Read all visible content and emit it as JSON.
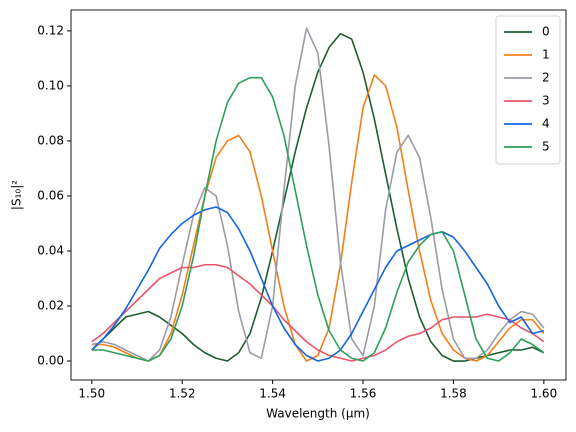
{
  "chart_data": {
    "type": "line",
    "xlabel": "Wavelength (μm)",
    "ylabel": "|S₁₀|²",
    "x": [
      1.5,
      1.5025,
      1.505,
      1.5075,
      1.51,
      1.5125,
      1.515,
      1.5175,
      1.52,
      1.5225,
      1.525,
      1.5275,
      1.53,
      1.5325,
      1.535,
      1.5375,
      1.54,
      1.5425,
      1.545,
      1.5475,
      1.55,
      1.5525,
      1.555,
      1.5575,
      1.56,
      1.5625,
      1.565,
      1.5675,
      1.57,
      1.5725,
      1.575,
      1.5775,
      1.58,
      1.5825,
      1.585,
      1.5875,
      1.59,
      1.5925,
      1.595,
      1.5975,
      1.6
    ],
    "series": [
      {
        "name": "0",
        "color": "#1b5e32",
        "values": [
          0.004,
          0.008,
          0.012,
          0.016,
          0.017,
          0.018,
          0.016,
          0.013,
          0.01,
          0.006,
          0.003,
          0.001,
          0.0,
          0.003,
          0.01,
          0.023,
          0.04,
          0.058,
          0.076,
          0.092,
          0.105,
          0.114,
          0.119,
          0.117,
          0.105,
          0.088,
          0.068,
          0.048,
          0.03,
          0.016,
          0.007,
          0.002,
          0.0,
          0.0,
          0.001,
          0.002,
          0.003,
          0.004,
          0.004,
          0.005,
          0.003
        ]
      },
      {
        "name": "1",
        "color": "#f47f1a",
        "values": [
          0.006,
          0.006,
          0.005,
          0.003,
          0.001,
          0.0,
          0.002,
          0.01,
          0.024,
          0.042,
          0.06,
          0.074,
          0.08,
          0.082,
          0.076,
          0.06,
          0.04,
          0.02,
          0.006,
          0.0,
          0.002,
          0.012,
          0.035,
          0.065,
          0.092,
          0.104,
          0.1,
          0.085,
          0.062,
          0.04,
          0.022,
          0.01,
          0.004,
          0.001,
          0.0,
          0.002,
          0.007,
          0.012,
          0.015,
          0.015,
          0.01
        ]
      },
      {
        "name": "2",
        "color": "#9c9ca4",
        "values": [
          0.006,
          0.007,
          0.006,
          0.004,
          0.002,
          0.0,
          0.004,
          0.016,
          0.035,
          0.053,
          0.063,
          0.06,
          0.042,
          0.018,
          0.003,
          0.001,
          0.02,
          0.062,
          0.1,
          0.121,
          0.112,
          0.078,
          0.036,
          0.008,
          0.002,
          0.02,
          0.055,
          0.076,
          0.082,
          0.074,
          0.052,
          0.026,
          0.008,
          0.001,
          0.001,
          0.004,
          0.01,
          0.015,
          0.018,
          0.017,
          0.012
        ]
      },
      {
        "name": "3",
        "color": "#e8556b",
        "values": [
          0.007,
          0.01,
          0.014,
          0.018,
          0.022,
          0.026,
          0.03,
          0.032,
          0.034,
          0.034,
          0.035,
          0.035,
          0.034,
          0.031,
          0.028,
          0.024,
          0.02,
          0.015,
          0.011,
          0.007,
          0.004,
          0.002,
          0.001,
          0.0,
          0.001,
          0.002,
          0.004,
          0.007,
          0.009,
          0.01,
          0.012,
          0.015,
          0.016,
          0.016,
          0.016,
          0.017,
          0.016,
          0.015,
          0.012,
          0.01,
          0.007
        ]
      },
      {
        "name": "4",
        "color": "#1565e0",
        "values": [
          0.004,
          0.008,
          0.013,
          0.019,
          0.026,
          0.033,
          0.041,
          0.046,
          0.05,
          0.053,
          0.055,
          0.056,
          0.054,
          0.048,
          0.04,
          0.03,
          0.02,
          0.012,
          0.006,
          0.002,
          0.0,
          0.001,
          0.004,
          0.01,
          0.018,
          0.026,
          0.034,
          0.04,
          0.042,
          0.044,
          0.046,
          0.047,
          0.045,
          0.04,
          0.034,
          0.028,
          0.02,
          0.014,
          0.016,
          0.01,
          0.011
        ]
      },
      {
        "name": "5",
        "color": "#2ca05a",
        "values": [
          0.004,
          0.004,
          0.003,
          0.002,
          0.001,
          0.0,
          0.002,
          0.008,
          0.02,
          0.038,
          0.06,
          0.08,
          0.094,
          0.101,
          0.103,
          0.103,
          0.096,
          0.082,
          0.062,
          0.042,
          0.024,
          0.011,
          0.004,
          0.001,
          0.0,
          0.003,
          0.012,
          0.025,
          0.036,
          0.042,
          0.046,
          0.047,
          0.04,
          0.024,
          0.008,
          0.001,
          0.0,
          0.003,
          0.008,
          0.006,
          0.003
        ]
      }
    ],
    "xlim": [
      1.4954,
      1.6049
    ],
    "ylim": [
      -0.0069,
      0.1276
    ],
    "xticks": [
      {
        "value": 1.5,
        "label": "1.50"
      },
      {
        "value": 1.52,
        "label": "1.52"
      },
      {
        "value": 1.54,
        "label": "1.54"
      },
      {
        "value": 1.56,
        "label": "1.56"
      },
      {
        "value": 1.58,
        "label": "1.58"
      },
      {
        "value": 1.6,
        "label": "1.60"
      }
    ],
    "yticks": [
      {
        "value": 0,
        "label": "0.00"
      },
      {
        "value": 0.02,
        "label": "0.02"
      },
      {
        "value": 0.04,
        "label": "0.04"
      },
      {
        "value": 0.06,
        "label": "0.06"
      },
      {
        "value": 0.08,
        "label": "0.08"
      },
      {
        "value": 0.1,
        "label": "0.10"
      },
      {
        "value": 0.12,
        "label": "0.12"
      }
    ],
    "grid": false,
    "legend": "upper right"
  }
}
